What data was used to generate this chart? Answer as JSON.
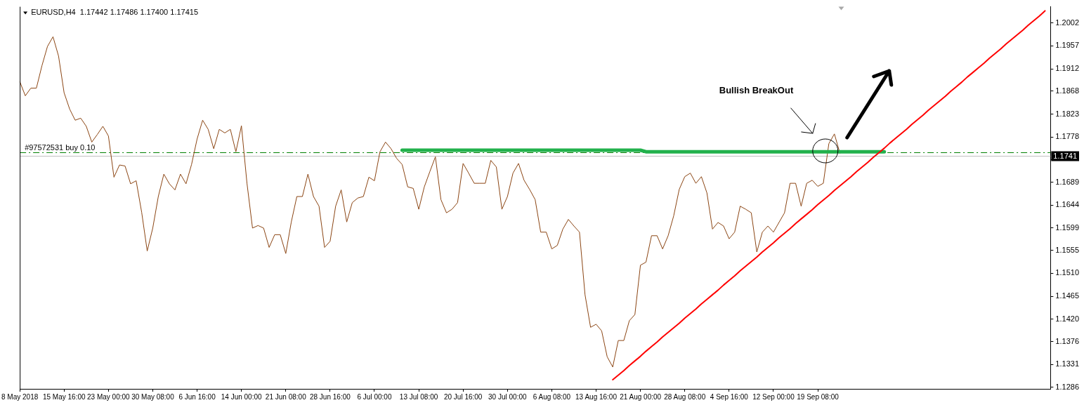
{
  "chart_data": {
    "type": "line",
    "title": "EURUSD,H4  1.17442 1.17486 1.17400 1.17415",
    "categories": [
      "8 May 2018",
      null,
      null,
      null,
      null,
      null,
      null,
      null,
      "15 May 16:00",
      null,
      null,
      null,
      null,
      null,
      null,
      null,
      "23 May 00:00",
      null,
      null,
      null,
      null,
      null,
      null,
      null,
      "30 May 08:00",
      null,
      null,
      null,
      null,
      null,
      null,
      null,
      "6 Jun 16:00",
      null,
      null,
      null,
      null,
      null,
      null,
      null,
      "14 Jun 00:00",
      null,
      null,
      null,
      null,
      null,
      null,
      null,
      "21 Jun 08:00",
      null,
      null,
      null,
      null,
      null,
      null,
      null,
      "28 Jun 16:00",
      null,
      null,
      null,
      null,
      null,
      null,
      null,
      "6 Jul 00:00",
      null,
      null,
      null,
      null,
      null,
      null,
      null,
      "13 Jul 08:00",
      null,
      null,
      null,
      null,
      null,
      null,
      null,
      "20 Jul 16:00",
      null,
      null,
      null,
      null,
      null,
      null,
      null,
      "30 Jul 00:00",
      null,
      null,
      null,
      null,
      null,
      null,
      null,
      "6 Aug 08:00",
      null,
      null,
      null,
      null,
      null,
      null,
      null,
      "13 Aug 16:00",
      null,
      null,
      null,
      null,
      null,
      null,
      null,
      "21 Aug 00:00",
      null,
      null,
      null,
      null,
      null,
      null,
      null,
      "28 Aug 08:00",
      null,
      null,
      null,
      null,
      null,
      null,
      null,
      "4 Sep 16:00",
      null,
      null,
      null,
      null,
      null,
      null,
      null,
      "12 Sep 00:00",
      null,
      null,
      null,
      null,
      null,
      null,
      null,
      "19 Sep 08:00",
      null,
      null,
      null,
      null,
      null,
      null,
      null,
      null,
      null,
      null,
      null,
      null,
      null,
      null,
      null,
      null,
      null,
      null,
      null,
      null,
      null,
      null,
      null,
      null,
      null,
      null,
      null,
      null,
      null,
      null,
      null,
      null,
      null,
      null,
      null,
      null,
      null,
      null,
      null,
      null,
      null,
      null
    ],
    "ylim": [
      1.1283,
      1.2034
    ],
    "yticks": [
      1.1286,
      1.1331,
      1.1376,
      {
        "value": 1.142,
        "label": "1.1420"
      },
      1.1465,
      {
        "value": 1.151,
        "label": "1.1510"
      },
      1.1555,
      1.1599,
      1.1644,
      1.1689,
      {
        "value": 1.1733,
        "label": null
      },
      1.1778,
      1.1823,
      1.1868,
      1.1912,
      1.1957,
      1.2002
    ],
    "series": [
      {
        "color": "#8b4513",
        "values": [
          1.1887,
          1.1859,
          1.1874,
          1.1874,
          1.1918,
          1.1956,
          1.1975,
          1.1937,
          1.1865,
          1.1833,
          1.1811,
          1.1815,
          1.1799,
          1.1768,
          1.1783,
          1.1799,
          1.178,
          1.1699,
          1.1723,
          1.1721,
          1.1686,
          1.1692,
          1.163,
          1.1554,
          1.1599,
          1.1661,
          1.1705,
          1.1686,
          1.1674,
          1.1705,
          1.1686,
          1.1724,
          1.1774,
          1.1811,
          1.1793,
          1.1755,
          1.1793,
          1.1786,
          1.1793,
          1.1749,
          1.18,
          1.1687,
          1.1599,
          1.1604,
          1.1599,
          1.1561,
          1.1586,
          1.1586,
          1.1549,
          1.1611,
          1.1661,
          1.1661,
          1.1705,
          1.1661,
          1.1642,
          1.1561,
          1.1573,
          1.1642,
          1.1674,
          1.1611,
          1.1649,
          1.1658,
          1.1661,
          1.1699,
          1.1692,
          1.1749,
          1.1768,
          1.1755,
          1.1736,
          1.1724,
          1.168,
          1.1677,
          1.1636,
          1.168,
          1.171,
          1.1739,
          1.1655,
          1.1629,
          1.1636,
          1.1649,
          1.1726,
          1.1707,
          1.1687,
          1.1687,
          1.1687,
          1.1732,
          1.1719,
          1.1636,
          1.1661,
          1.1707,
          1.1726,
          1.1693,
          1.1675,
          1.1655,
          1.1591,
          1.1591,
          1.1558,
          1.1565,
          1.1597,
          1.1616,
          1.1603,
          1.1591,
          1.1468,
          1.1404,
          1.141,
          1.1397,
          1.1346,
          1.1326,
          1.1378,
          1.1378,
          1.1417,
          1.1429,
          1.1526,
          1.1532,
          1.1584,
          1.1584,
          1.1558,
          1.1584,
          1.1623,
          1.1675,
          1.17,
          1.1707,
          1.1687,
          1.17,
          1.1668,
          1.1597,
          1.161,
          1.1603,
          1.1578,
          1.1591,
          1.1642,
          1.1636,
          1.1629,
          1.1552,
          1.1591,
          1.1603,
          1.1591,
          1.161,
          1.1629,
          1.1687,
          1.1687,
          1.1642,
          1.1687,
          1.1693,
          1.1681,
          1.1687,
          1.1765,
          1.1784,
          1.1746,
          null,
          null,
          null,
          null,
          null,
          null,
          null,
          null,
          null,
          null,
          null,
          null,
          null,
          null,
          null,
          null,
          null,
          null,
          null,
          null,
          null,
          null,
          null,
          null,
          null,
          null,
          null,
          null,
          null,
          null,
          null,
          null,
          null,
          null,
          null,
          null,
          null,
          null
        ]
      },
      {
        "color": "#22b14c",
        "values": [
          null,
          null,
          null,
          null,
          null,
          null,
          null,
          null,
          null,
          null,
          null,
          null,
          null,
          null,
          null,
          null,
          null,
          null,
          null,
          null,
          null,
          null,
          null,
          null,
          null,
          null,
          null,
          null,
          null,
          null,
          null,
          null,
          null,
          null,
          null,
          null,
          null,
          null,
          null,
          null,
          null,
          null,
          null,
          null,
          null,
          null,
          null,
          null,
          null,
          null,
          null,
          null,
          null,
          null,
          null,
          null,
          null,
          null,
          null,
          null,
          null,
          null,
          null,
          null,
          null,
          null,
          null,
          null,
          null,
          1.1752,
          1.1752,
          1.1752,
          1.1752,
          1.1752,
          1.1752,
          1.1752,
          1.1752,
          1.1752,
          1.1752,
          1.1752,
          1.1752,
          1.1752,
          1.1752,
          1.1752,
          1.1752,
          1.1752,
          1.1752,
          1.1752,
          1.1752,
          1.1752,
          1.1752,
          1.1752,
          1.1752,
          1.1752,
          1.1752,
          1.1752,
          1.1752,
          1.1752,
          1.1752,
          1.1752,
          1.1752,
          1.1752,
          1.1752,
          1.1752,
          1.1752,
          1.1752,
          1.1752,
          1.1752,
          1.1752,
          1.1752,
          1.1752,
          1.1752,
          1.1752,
          1.1749,
          1.1749,
          1.1749,
          1.1749,
          1.1749,
          1.1749,
          1.1749,
          1.1749,
          1.1749,
          1.1749,
          1.1749,
          1.1749,
          1.1749,
          1.1749,
          1.1749,
          1.1749,
          1.1749,
          1.1749,
          1.1749,
          1.1749,
          1.1749,
          1.1749,
          1.1749,
          1.1749,
          1.1749,
          1.1749,
          1.1749,
          1.1749,
          1.1749,
          1.1749,
          1.1749,
          1.1749,
          1.1749,
          1.1749,
          1.1749,
          1.1749,
          1.1749,
          1.1749,
          1.1749,
          1.1749,
          1.1749,
          1.1749,
          1.1749,
          1.1749,
          null,
          null,
          null,
          null,
          null,
          null,
          null,
          null,
          null,
          null,
          null,
          null,
          null,
          null,
          null,
          null,
          null,
          null,
          null,
          null,
          null,
          null,
          null,
          null,
          null,
          null,
          null,
          null,
          null,
          null
        ]
      },
      {
        "color": "#ff0000",
        "values": [
          null,
          null,
          null,
          null,
          null,
          null,
          null,
          null,
          null,
          null,
          null,
          null,
          null,
          null,
          null,
          null,
          null,
          null,
          null,
          null,
          null,
          null,
          null,
          null,
          null,
          null,
          null,
          null,
          null,
          null,
          null,
          null,
          null,
          null,
          null,
          null,
          null,
          null,
          null,
          null,
          null,
          null,
          null,
          null,
          null,
          null,
          null,
          null,
          null,
          null,
          null,
          null,
          null,
          null,
          null,
          null,
          null,
          null,
          null,
          null,
          null,
          null,
          null,
          null,
          null,
          null,
          null,
          null,
          null,
          null,
          null,
          null,
          null,
          null,
          null,
          null,
          null,
          null,
          null,
          null,
          null,
          null,
          null,
          null,
          null,
          null,
          null,
          null,
          null,
          null,
          null,
          null,
          null,
          null,
          null,
          null,
          null,
          null,
          null,
          null,
          null,
          null,
          null,
          null,
          null,
          null,
          null,
          1.1301,
          1.131,
          1.1319,
          1.1329,
          1.1338,
          1.1347,
          1.1357,
          1.1366,
          1.1375,
          1.1385,
          1.1394,
          1.1403,
          1.1412,
          1.1422,
          1.1431,
          1.144,
          1.145,
          1.1459,
          1.1468,
          1.1477,
          1.1487,
          1.1496,
          1.1505,
          1.1515,
          1.1524,
          1.1533,
          1.1542,
          1.1552,
          1.1561,
          1.157,
          1.158,
          1.1589,
          1.1598,
          1.1608,
          1.1617,
          1.1626,
          1.1635,
          1.1645,
          1.1654,
          1.1663,
          1.1673,
          1.1682,
          1.1691,
          1.17,
          1.171,
          1.1719,
          1.1728,
          1.1738,
          1.1747,
          1.1756,
          1.1766,
          1.1775,
          1.1784,
          1.1793,
          1.1803,
          1.1812,
          1.1821,
          1.1831,
          1.184,
          1.1849,
          1.1858,
          1.1868,
          1.1877,
          1.1886,
          1.1896,
          1.1905,
          1.1914,
          1.1923,
          1.1933,
          1.1942,
          1.1951,
          1.1961,
          1.197,
          1.1979,
          1.1988,
          1.1998,
          1.2007,
          1.2016,
          1.2026,
          null
        ]
      }
    ],
    "ref_lines": [
      {
        "axis": "y",
        "value": 1.1748,
        "label": "#97572531 buy 0.10",
        "color": "#008000",
        "line_style": "dashed"
      },
      {
        "axis": "y",
        "value": 1.1741,
        "label": "1.1741",
        "color": "#c0c0c0",
        "line_style": "solid"
      }
    ],
    "annotations": [
      "Bullish BreakOut"
    ]
  }
}
